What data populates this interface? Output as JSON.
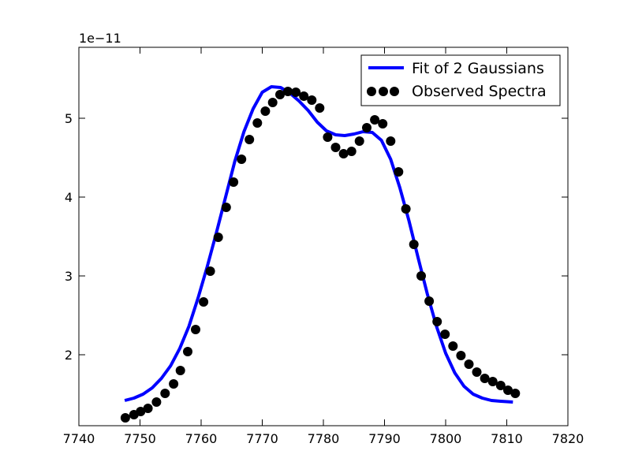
{
  "chart_data": {
    "type": "scatter",
    "title": "",
    "xlabel": "",
    "ylabel": "",
    "offset_label": "1e−11",
    "xlim": [
      7740,
      7820
    ],
    "ylim": [
      1.1,
      5.9
    ],
    "x_ticks": [
      7740,
      7750,
      7760,
      7770,
      7780,
      7790,
      7800,
      7810,
      7820
    ],
    "x_tick_labels": [
      "7740",
      "7750",
      "7760",
      "7770",
      "7780",
      "7790",
      "7800",
      "7810",
      "7820"
    ],
    "y_ticks": [
      2,
      3,
      4,
      5
    ],
    "y_tick_labels": [
      "2",
      "3",
      "4",
      "5"
    ],
    "grid": false,
    "legend_position": "top-right",
    "series": [
      {
        "name": "Fit of 2 Gaussians",
        "kind": "line",
        "color": "#0000ff",
        "x": [
          7747.5,
          7749,
          7750.5,
          7752,
          7753.5,
          7755,
          7756.5,
          7758,
          7759.5,
          7761,
          7762.5,
          7764,
          7765.5,
          7767,
          7768.5,
          7770,
          7771.5,
          7773,
          7774.5,
          7776,
          7777.5,
          7779,
          7780.5,
          7782,
          7783.5,
          7785,
          7786.5,
          7788,
          7789.5,
          7791,
          7792.5,
          7794,
          7795.5,
          7797,
          7798.5,
          7800,
          7801.5,
          7803,
          7804.5,
          7806,
          7807.5,
          7809,
          7811
        ],
        "y": [
          1.42,
          1.45,
          1.5,
          1.58,
          1.7,
          1.86,
          2.08,
          2.36,
          2.72,
          3.12,
          3.55,
          4.0,
          4.45,
          4.83,
          5.12,
          5.33,
          5.4,
          5.39,
          5.32,
          5.22,
          5.1,
          4.95,
          4.84,
          4.79,
          4.78,
          4.8,
          4.83,
          4.82,
          4.72,
          4.48,
          4.12,
          3.7,
          3.23,
          2.77,
          2.36,
          2.02,
          1.77,
          1.6,
          1.5,
          1.45,
          1.42,
          1.41,
          1.4
        ]
      },
      {
        "name": "Observed Spectra",
        "kind": "scatter",
        "color": "#000000",
        "x": [
          7747.6,
          7749.0,
          7750.1,
          7751.3,
          7752.7,
          7754.1,
          7755.5,
          7756.6,
          7757.8,
          7759.1,
          7760.4,
          7761.5,
          7762.8,
          7764.1,
          7765.3,
          7766.6,
          7767.9,
          7769.2,
          7770.5,
          7771.7,
          7772.9,
          7774.2,
          7775.5,
          7776.8,
          7778.1,
          7779.4,
          7780.7,
          7782.0,
          7783.3,
          7784.6,
          7785.9,
          7787.1,
          7788.4,
          7789.7,
          7791.0,
          7792.3,
          7793.5,
          7794.8,
          7796.0,
          7797.3,
          7798.6,
          7799.9,
          7801.2,
          7802.5,
          7803.8,
          7805.1,
          7806.4,
          7807.7,
          7809.0,
          7810.2,
          7811.4
        ],
        "y": [
          1.2,
          1.24,
          1.28,
          1.32,
          1.4,
          1.51,
          1.63,
          1.8,
          2.04,
          2.32,
          2.67,
          3.06,
          3.49,
          3.87,
          4.19,
          4.48,
          4.73,
          4.94,
          5.09,
          5.2,
          5.3,
          5.34,
          5.33,
          5.28,
          5.23,
          5.13,
          4.76,
          4.63,
          4.55,
          4.58,
          4.71,
          4.88,
          4.98,
          4.93,
          4.71,
          4.32,
          3.85,
          3.4,
          3.0,
          2.68,
          2.42,
          2.26,
          2.11,
          1.99,
          1.88,
          1.78,
          1.7,
          1.66,
          1.61,
          1.55,
          1.51
        ]
      }
    ]
  }
}
